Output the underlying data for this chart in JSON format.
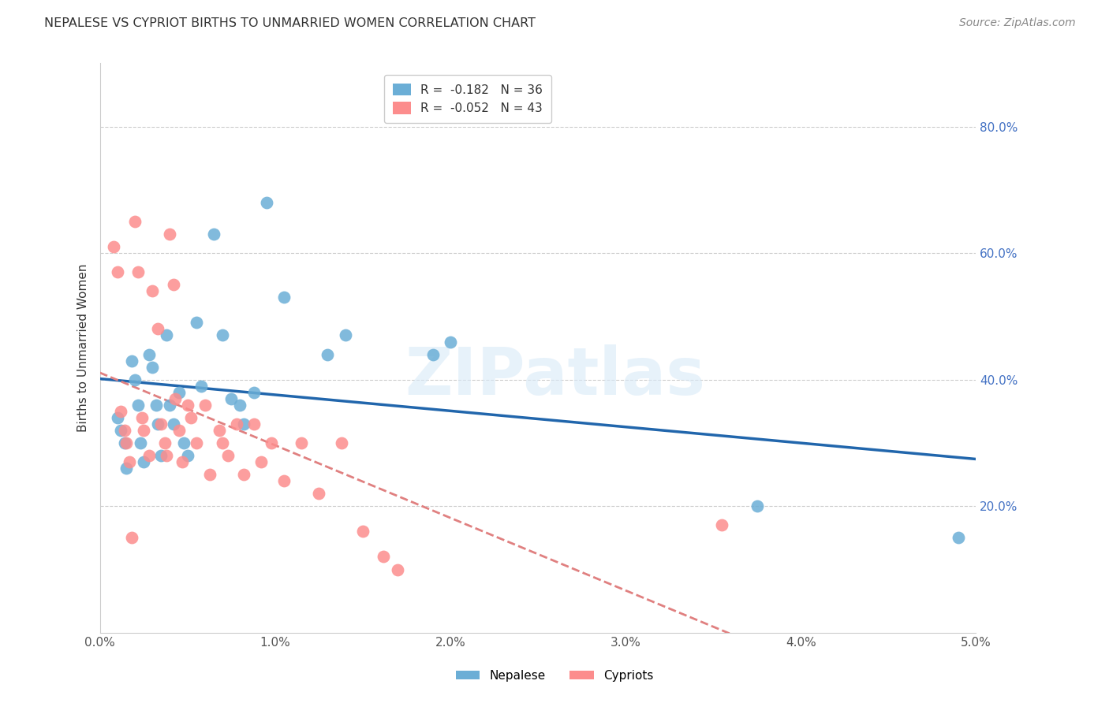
{
  "title": "NEPALESE VS CYPRIOT BIRTHS TO UNMARRIED WOMEN CORRELATION CHART",
  "source": "Source: ZipAtlas.com",
  "ylabel": "Births to Unmarried Women",
  "xlabel_ticks": [
    "0.0%",
    "1.0%",
    "2.0%",
    "3.0%",
    "4.0%",
    "5.0%"
  ],
  "xlabel_vals": [
    0.0,
    1.0,
    2.0,
    3.0,
    4.0,
    5.0
  ],
  "ylabel_ticks": [
    "20.0%",
    "40.0%",
    "60.0%",
    "80.0%"
  ],
  "ylabel_vals": [
    0.2,
    0.4,
    0.6,
    0.8
  ],
  "xlim": [
    0.0,
    5.0
  ],
  "ylim": [
    0.0,
    0.9
  ],
  "nepalese_R": -0.182,
  "nepalese_N": 36,
  "cypriot_R": -0.052,
  "cypriot_N": 43,
  "nepalese_color": "#6baed6",
  "cypriot_color": "#fc8d8d",
  "trendline_nepalese_color": "#2166ac",
  "trendline_cypriot_color": "#e08080",
  "nepalese_x": [
    0.1,
    0.12,
    0.14,
    0.15,
    0.18,
    0.2,
    0.22,
    0.23,
    0.25,
    0.28,
    0.3,
    0.32,
    0.33,
    0.35,
    0.38,
    0.4,
    0.42,
    0.45,
    0.48,
    0.5,
    0.55,
    0.58,
    0.65,
    0.7,
    0.75,
    0.8,
    0.82,
    0.88,
    0.95,
    1.05,
    1.3,
    1.4,
    1.9,
    2.0,
    3.75,
    4.9
  ],
  "nepalese_y": [
    0.34,
    0.32,
    0.3,
    0.26,
    0.43,
    0.4,
    0.36,
    0.3,
    0.27,
    0.44,
    0.42,
    0.36,
    0.33,
    0.28,
    0.47,
    0.36,
    0.33,
    0.38,
    0.3,
    0.28,
    0.49,
    0.39,
    0.63,
    0.47,
    0.37,
    0.36,
    0.33,
    0.38,
    0.68,
    0.53,
    0.44,
    0.47,
    0.44,
    0.46,
    0.2,
    0.15
  ],
  "cypriot_x": [
    0.08,
    0.1,
    0.12,
    0.14,
    0.15,
    0.17,
    0.18,
    0.2,
    0.22,
    0.24,
    0.25,
    0.28,
    0.3,
    0.33,
    0.35,
    0.37,
    0.38,
    0.4,
    0.42,
    0.43,
    0.45,
    0.47,
    0.5,
    0.52,
    0.55,
    0.6,
    0.63,
    0.68,
    0.7,
    0.73,
    0.78,
    0.82,
    0.88,
    0.92,
    0.98,
    1.05,
    1.15,
    1.25,
    1.38,
    1.5,
    1.62,
    1.7,
    3.55
  ],
  "cypriot_y": [
    0.61,
    0.57,
    0.35,
    0.32,
    0.3,
    0.27,
    0.15,
    0.65,
    0.57,
    0.34,
    0.32,
    0.28,
    0.54,
    0.48,
    0.33,
    0.3,
    0.28,
    0.63,
    0.55,
    0.37,
    0.32,
    0.27,
    0.36,
    0.34,
    0.3,
    0.36,
    0.25,
    0.32,
    0.3,
    0.28,
    0.33,
    0.25,
    0.33,
    0.27,
    0.3,
    0.24,
    0.3,
    0.22,
    0.3,
    0.16,
    0.12,
    0.1,
    0.17
  ]
}
